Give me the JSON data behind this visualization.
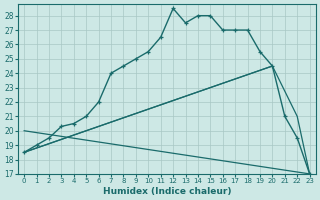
{
  "xlabel": "Humidex (Indice chaleur)",
  "bg_color": "#cde8e5",
  "line_color": "#1a6b6b",
  "grid_color": "#a8c8c5",
  "xlim": [
    -0.5,
    23.5
  ],
  "ylim": [
    17,
    28.8
  ],
  "yticks": [
    17,
    18,
    19,
    20,
    21,
    22,
    23,
    24,
    25,
    26,
    27,
    28
  ],
  "xticks": [
    0,
    1,
    2,
    3,
    4,
    5,
    6,
    7,
    8,
    9,
    10,
    11,
    12,
    13,
    14,
    15,
    16,
    17,
    18,
    19,
    20,
    21,
    22,
    23
  ],
  "curve": {
    "x": [
      0,
      1,
      2,
      3,
      4,
      5,
      6,
      7,
      8,
      9,
      10,
      11,
      12,
      13,
      14,
      15,
      16,
      17,
      18,
      19,
      20,
      21,
      22,
      23
    ],
    "y": [
      18.5,
      19.0,
      19.5,
      20.3,
      20.5,
      21.0,
      22.0,
      24.0,
      24.5,
      25.0,
      25.5,
      26.5,
      28.5,
      27.5,
      28.0,
      28.0,
      27.0,
      27.0,
      27.0,
      25.5,
      24.5,
      21.0,
      19.5,
      17.0
    ]
  },
  "line_up": {
    "x": [
      0,
      20
    ],
    "y": [
      18.5,
      24.5
    ]
  },
  "line_peak_down": {
    "x": [
      0,
      20,
      22,
      23
    ],
    "y": [
      18.5,
      24.5,
      21.0,
      17.0
    ]
  },
  "line_flat": {
    "x": [
      0,
      23
    ],
    "y": [
      20.0,
      17.0
    ]
  }
}
